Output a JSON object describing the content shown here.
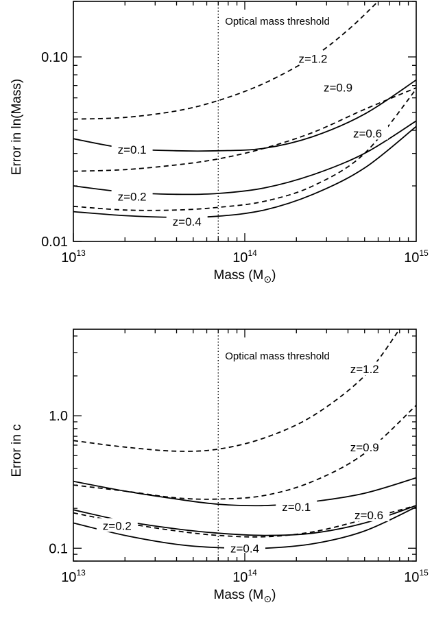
{
  "chart_data": [
    {
      "type": "line",
      "title": "",
      "xlabel": "Mass (M",
      "xlabel_subscript": "⊙",
      "xlabel_close": ")",
      "ylabel": "Error in ln(Mass)",
      "xscale": "log",
      "yscale": "log",
      "xlim": [
        10000000000000.0,
        1000000000000000.0
      ],
      "ylim": [
        0.01,
        0.2
      ],
      "x_ticks": [
        {
          "value": 10000000000000.0,
          "base": "10",
          "exp": "13"
        },
        {
          "value": 100000000000000.0,
          "base": "10",
          "exp": "14"
        },
        {
          "value": 1000000000000000.0,
          "base": "10",
          "exp": "15"
        }
      ],
      "y_ticks": [
        {
          "value": 0.1,
          "label": "0.10"
        },
        {
          "value": 0.01,
          "label": "0.01"
        }
      ],
      "threshold": {
        "x": 70000000000000.0,
        "label": "Optical mass threshold"
      },
      "series": [
        {
          "name": "z=0.1",
          "style": "solid",
          "x": [
            10000000000000.0,
            20000000000000.0,
            40000000000000.0,
            70000000000000.0,
            130000000000000.0,
            250000000000000.0,
            500000000000000.0,
            1000000000000000.0
          ],
          "y": [
            0.036,
            0.032,
            0.031,
            0.031,
            0.032,
            0.037,
            0.049,
            0.075
          ]
        },
        {
          "name": "z=0.2",
          "style": "solid",
          "x": [
            10000000000000.0,
            20000000000000.0,
            40000000000000.0,
            70000000000000.0,
            130000000000000.0,
            250000000000000.0,
            500000000000000.0,
            1000000000000000.0
          ],
          "y": [
            0.02,
            0.0185,
            0.018,
            0.0182,
            0.0195,
            0.023,
            0.03,
            0.045
          ]
        },
        {
          "name": "z=0.4",
          "style": "solid",
          "x": [
            10000000000000.0,
            20000000000000.0,
            40000000000000.0,
            70000000000000.0,
            130000000000000.0,
            250000000000000.0,
            500000000000000.0,
            1000000000000000.0
          ],
          "y": [
            0.0145,
            0.0138,
            0.0135,
            0.0137,
            0.0148,
            0.018,
            0.025,
            0.042
          ]
        },
        {
          "name": "z=0.6",
          "style": "dashed",
          "x": [
            10000000000000.0,
            20000000000000.0,
            40000000000000.0,
            70000000000000.0,
            130000000000000.0,
            250000000000000.0,
            500000000000000.0,
            1000000000000000.0
          ],
          "y": [
            0.0155,
            0.0148,
            0.0148,
            0.0153,
            0.0165,
            0.02,
            0.03,
            0.067
          ]
        },
        {
          "name": "z=0.9",
          "style": "dashed",
          "x": [
            10000000000000.0,
            20000000000000.0,
            40000000000000.0,
            70000000000000.0,
            130000000000000.0,
            250000000000000.0,
            500000000000000.0,
            1000000000000000.0
          ],
          "y": [
            0.024,
            0.0245,
            0.026,
            0.028,
            0.032,
            0.039,
            0.052,
            0.068
          ]
        },
        {
          "name": "z=1.2",
          "style": "dashed",
          "x": [
            10000000000000.0,
            20000000000000.0,
            40000000000000.0,
            70000000000000.0,
            130000000000000.0,
            250000000000000.0,
            400000000000000.0,
            600000000000000.0
          ],
          "y": [
            0.046,
            0.047,
            0.051,
            0.058,
            0.072,
            0.1,
            0.14,
            0.2
          ]
        }
      ]
    },
    {
      "type": "line",
      "title": "",
      "xlabel": "Mass (M",
      "xlabel_subscript": "⊙",
      "xlabel_close": ")",
      "ylabel": "Error in c",
      "xscale": "log",
      "yscale": "log",
      "xlim": [
        10000000000000.0,
        1000000000000000.0
      ],
      "ylim": [
        0.08,
        4.5
      ],
      "x_ticks": [
        {
          "value": 10000000000000.0,
          "base": "10",
          "exp": "13"
        },
        {
          "value": 100000000000000.0,
          "base": "10",
          "exp": "14"
        },
        {
          "value": 1000000000000000.0,
          "base": "10",
          "exp": "15"
        }
      ],
      "y_ticks": [
        {
          "value": 1.0,
          "label": "1.0"
        },
        {
          "value": 0.1,
          "label": "0.1"
        }
      ],
      "threshold": {
        "x": 70000000000000.0,
        "label": "Optical mass threshold"
      },
      "series": [
        {
          "name": "z=0.1",
          "style": "solid",
          "x": [
            10000000000000.0,
            20000000000000.0,
            40000000000000.0,
            70000000000000.0,
            130000000000000.0,
            250000000000000.0,
            500000000000000.0,
            1000000000000000.0
          ],
          "y": [
            0.32,
            0.27,
            0.235,
            0.215,
            0.21,
            0.225,
            0.26,
            0.34
          ]
        },
        {
          "name": "z=0.2",
          "style": "solid",
          "x": [
            10000000000000.0,
            20000000000000.0,
            40000000000000.0,
            70000000000000.0,
            130000000000000.0,
            250000000000000.0,
            500000000000000.0,
            1000000000000000.0
          ],
          "y": [
            0.195,
            0.16,
            0.14,
            0.13,
            0.125,
            0.13,
            0.155,
            0.21
          ]
        },
        {
          "name": "z=0.4",
          "style": "solid",
          "x": [
            10000000000000.0,
            20000000000000.0,
            40000000000000.0,
            70000000000000.0,
            130000000000000.0,
            250000000000000.0,
            500000000000000.0,
            1000000000000000.0
          ],
          "y": [
            0.155,
            0.125,
            0.107,
            0.101,
            0.1,
            0.108,
            0.135,
            0.205
          ]
        },
        {
          "name": "z=0.6",
          "style": "dashed",
          "x": [
            10000000000000.0,
            20000000000000.0,
            40000000000000.0,
            70000000000000.0,
            130000000000000.0,
            250000000000000.0,
            500000000000000.0,
            1000000000000000.0
          ],
          "y": [
            0.185,
            0.155,
            0.135,
            0.125,
            0.122,
            0.133,
            0.165,
            0.21
          ]
        },
        {
          "name": "z=0.9",
          "style": "dashed",
          "x": [
            10000000000000.0,
            20000000000000.0,
            40000000000000.0,
            70000000000000.0,
            130000000000000.0,
            250000000000000.0,
            500000000000000.0,
            1000000000000000.0
          ],
          "y": [
            0.3,
            0.27,
            0.24,
            0.235,
            0.25,
            0.32,
            0.52,
            1.2
          ]
        },
        {
          "name": "z=1.2",
          "style": "dashed",
          "x": [
            10000000000000.0,
            20000000000000.0,
            40000000000000.0,
            70000000000000.0,
            130000000000000.0,
            250000000000000.0,
            500000000000000.0,
            800000000000000.0
          ],
          "y": [
            0.65,
            0.58,
            0.54,
            0.56,
            0.68,
            1.0,
            2.0,
            4.5
          ]
        }
      ]
    }
  ]
}
